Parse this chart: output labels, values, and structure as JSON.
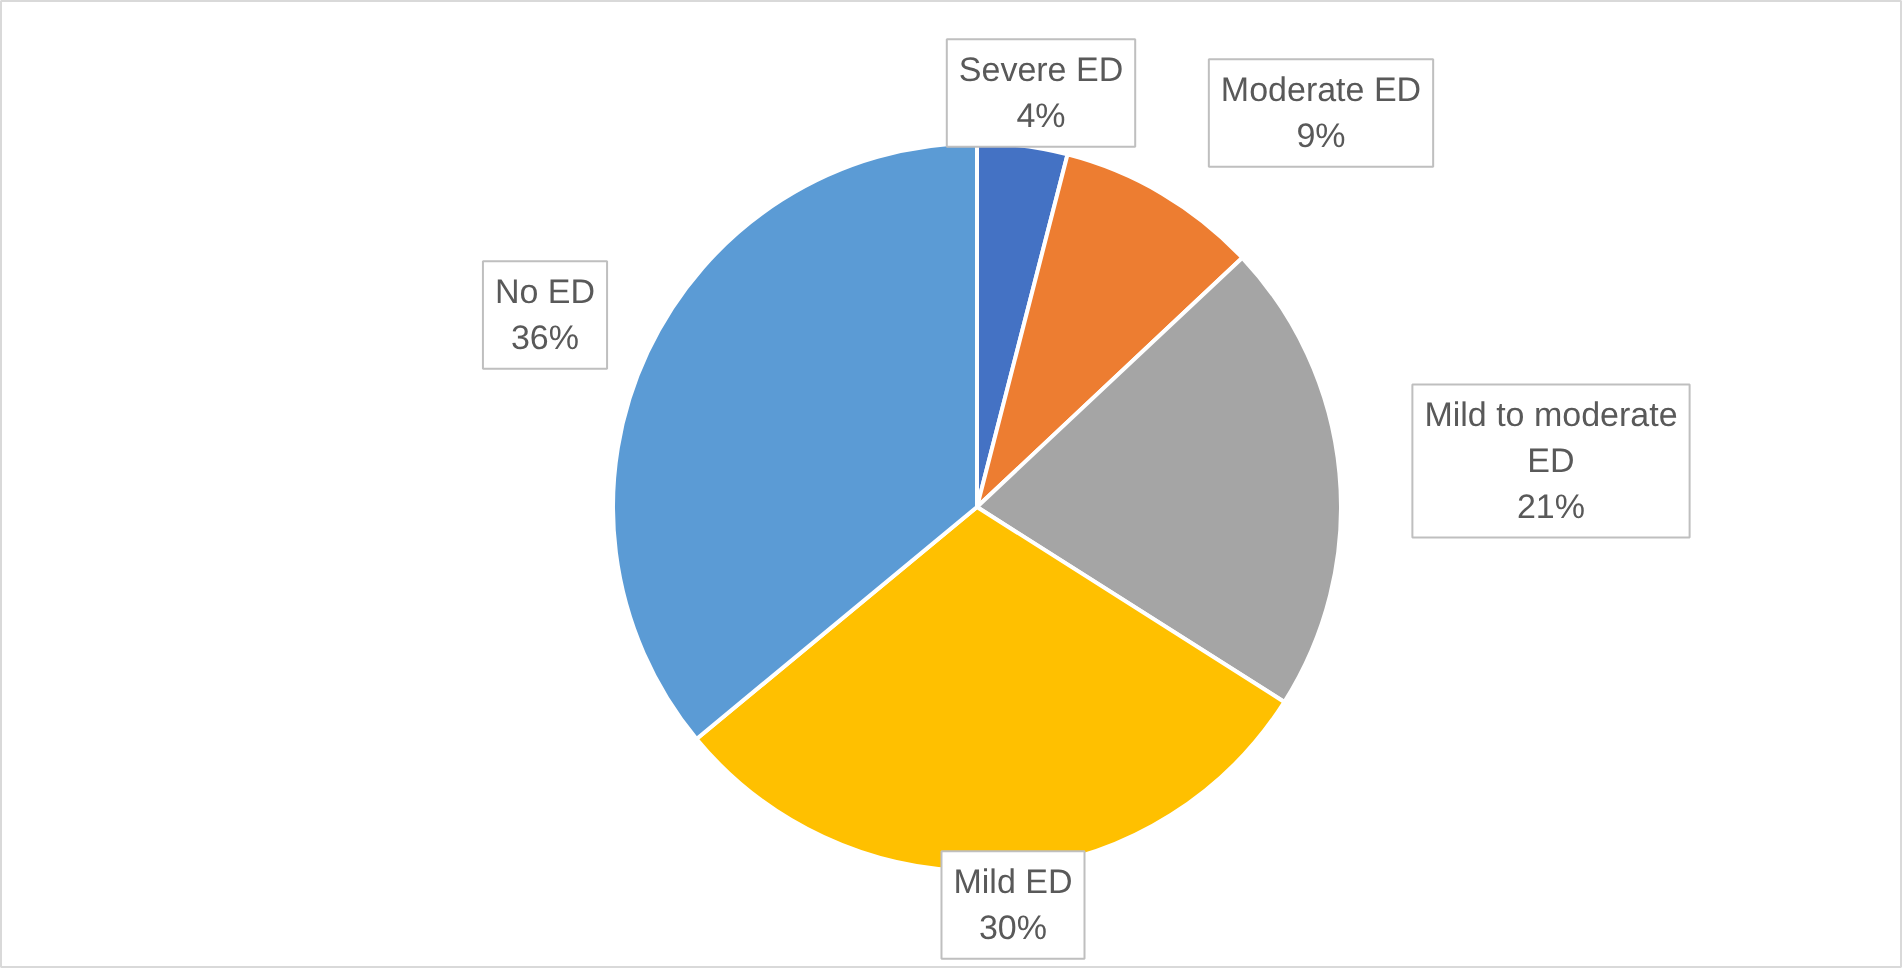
{
  "chart_data": {
    "type": "pie",
    "categories": [
      "Severe ED",
      "Moderate ED",
      "Mild to moderate ED",
      "Mild ED",
      "No ED"
    ],
    "values": [
      4,
      9,
      21,
      30,
      36
    ],
    "colors": [
      "#4472c4",
      "#ed7d31",
      "#a5a5a5",
      "#ffc000",
      "#5b9bd5"
    ],
    "value_labels": [
      "4%",
      "9%",
      "21%",
      "30%",
      "36%"
    ]
  }
}
